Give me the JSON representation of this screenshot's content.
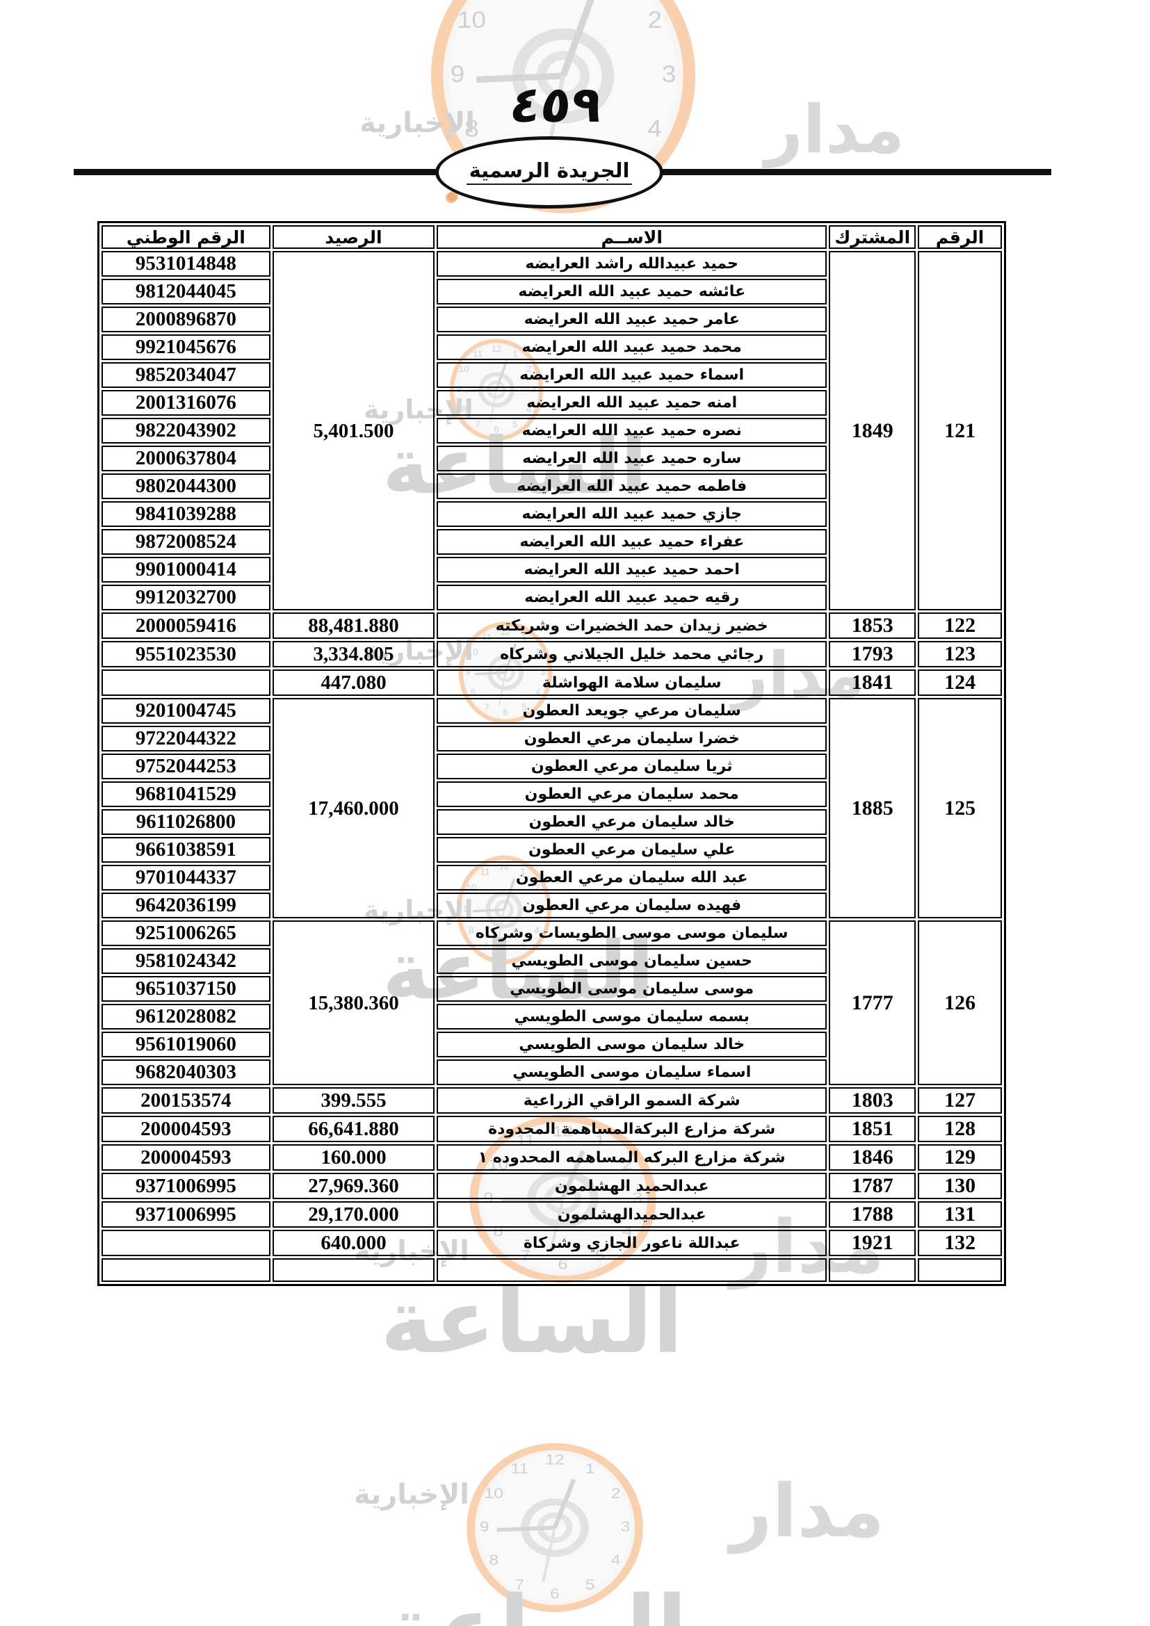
{
  "page": {
    "page_number": "٤٥٩",
    "title": "الجريدة الرسمية"
  },
  "watermark": {
    "agency_right": "مدار",
    "agency_bottom": "الساعة",
    "agency_left": "الإخبارية",
    "clock_numbers": [
      "12",
      "1",
      "2",
      "3",
      "4",
      "5",
      "6",
      "7",
      "8",
      "9",
      "10",
      "11"
    ],
    "rim_color": "#f8c9a2",
    "text_color": "#d4d4d4"
  },
  "table": {
    "headers": [
      "الرقم",
      "المشترك",
      "الاســم",
      "الرصيد",
      "الرقم الوطني"
    ],
    "records": [
      {
        "number": "121",
        "subscriber": "1849",
        "balance": "5,401.500",
        "rows": [
          {
            "name": "حميد عبيدالله راشد العرايضه",
            "national_id": "9531014848"
          },
          {
            "name": "عائشه حميد عبيد الله العرايضه",
            "national_id": "9812044045"
          },
          {
            "name": "عامر حميد عبيد الله العرايضه",
            "national_id": "2000896870"
          },
          {
            "name": "محمد حميد عبيد الله العرايضه",
            "national_id": "9921045676"
          },
          {
            "name": "اسماء حميد عبيد الله العرايضه",
            "national_id": "9852034047"
          },
          {
            "name": "امنه حميد عبيد الله العرايضه",
            "national_id": "2001316076"
          },
          {
            "name": "نصره حميد عبيد الله العرايضه",
            "national_id": "9822043902"
          },
          {
            "name": "ساره حميد عبيد الله العرايضه",
            "national_id": "2000637804"
          },
          {
            "name": "فاطمه حميد عبيد الله العرايضه",
            "national_id": "9802044300"
          },
          {
            "name": "جازي حميد عبيد الله العرايضه",
            "national_id": "9841039288"
          },
          {
            "name": "عفراء حميد عبيد الله العرايضه",
            "national_id": "9872008524"
          },
          {
            "name": "احمد حميد عبيد الله العرايضه",
            "national_id": "9901000414"
          },
          {
            "name": "رقيه حميد عبيد الله العرايضه",
            "national_id": "9912032700"
          }
        ]
      },
      {
        "number": "122",
        "subscriber": "1853",
        "balance": "88,481.880",
        "rows": [
          {
            "name": "خضير زيدان حمد الخضيرات وشريكته",
            "national_id": "2000059416"
          }
        ]
      },
      {
        "number": "123",
        "subscriber": "1793",
        "balance": "3,334.805",
        "rows": [
          {
            "name": "رجائي محمد خليل الجيلاني وشركاه",
            "national_id": "9551023530"
          }
        ]
      },
      {
        "number": "124",
        "subscriber": "1841",
        "balance": "447.080",
        "rows": [
          {
            "name": "سليمان سلامة الهواشلة",
            "national_id": ""
          }
        ]
      },
      {
        "number": "125",
        "subscriber": "1885",
        "balance": "17,460.000",
        "rows": [
          {
            "name": "سليمان مرعي جويعد العطون",
            "national_id": "9201004745"
          },
          {
            "name": "خضرا سليمان مرعي العطون",
            "national_id": "9722044322"
          },
          {
            "name": "ثريا سليمان مرعي العطون",
            "national_id": "9752044253"
          },
          {
            "name": "محمد سليمان مرعي العطون",
            "national_id": "9681041529"
          },
          {
            "name": "خالد سليمان مرعي العطون",
            "national_id": "9611026800"
          },
          {
            "name": "علي سليمان مرعي العطون",
            "national_id": "9661038591"
          },
          {
            "name": "عبد الله سليمان مرعي العطون",
            "national_id": "9701044337"
          },
          {
            "name": "فهيده سليمان مرعي العطون",
            "national_id": "9642036199"
          }
        ]
      },
      {
        "number": "126",
        "subscriber": "1777",
        "balance": "15,380.360",
        "rows": [
          {
            "name": "سليمان موسى موسى الطويسات وشركاه",
            "national_id": "9251006265"
          },
          {
            "name": "حسين سليمان موسى الطويسي",
            "national_id": "9581024342"
          },
          {
            "name": "موسى سليمان موسى الطويسي",
            "national_id": "9651037150"
          },
          {
            "name": "بسمه سليمان موسى الطويسي",
            "national_id": "9612028082"
          },
          {
            "name": "خالد سليمان موسى الطويسي",
            "national_id": "9561019060"
          },
          {
            "name": "اسماء سليمان موسى الطويسي",
            "national_id": "9682040303"
          }
        ]
      },
      {
        "number": "127",
        "subscriber": "1803",
        "balance": "399.555",
        "rows": [
          {
            "name": "شركة السمو الراقي الزراعية",
            "national_id": "200153574"
          }
        ]
      },
      {
        "number": "128",
        "subscriber": "1851",
        "balance": "66,641.880",
        "rows": [
          {
            "name": "شركة مزارع البركةالمساهمة المحدودة",
            "national_id": "200004593"
          }
        ]
      },
      {
        "number": "129",
        "subscriber": "1846",
        "balance": "160.000",
        "rows": [
          {
            "name": "شركة مزارع البركه المساهمه المحدوده ١",
            "national_id": "200004593"
          }
        ]
      },
      {
        "number": "130",
        "subscriber": "1787",
        "balance": "27,969.360",
        "rows": [
          {
            "name": "عبدالحميد الهشلمون",
            "national_id": "9371006995"
          }
        ]
      },
      {
        "number": "131",
        "subscriber": "1788",
        "balance": "29,170.000",
        "rows": [
          {
            "name": "عبدالحميدالهشلمون",
            "national_id": "9371006995"
          }
        ]
      },
      {
        "number": "132",
        "subscriber": "1921",
        "balance": "640.000",
        "rows": [
          {
            "name": "عبداللة ناعور الجازي وشركاة",
            "national_id": ""
          }
        ]
      }
    ]
  }
}
